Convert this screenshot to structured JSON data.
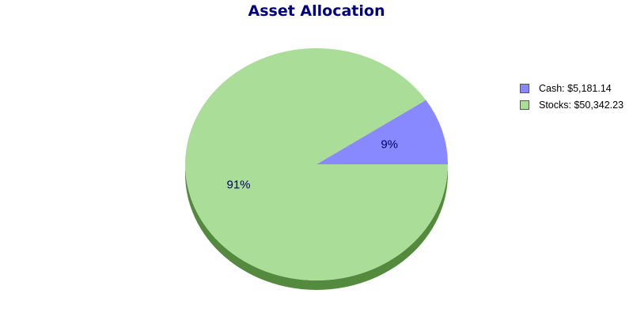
{
  "chart_data": {
    "type": "pie",
    "title": "Asset Allocation",
    "slices": [
      {
        "label": "Cash",
        "value": 5181.14,
        "legend_text": "Cash: $5,181.14",
        "percent_label": "9%",
        "color": "#8888ff",
        "shadow_color": "#4b4bbf"
      },
      {
        "label": "Stocks",
        "value": 50342.23,
        "legend_text": "Stocks: $50,342.23",
        "percent_label": "91%",
        "color": "#aade98",
        "shadow_color": "#548a3e"
      }
    ],
    "legend_position": "right",
    "start_angle_direction": "counter-clockwise from 3 o'clock",
    "style": "3D tilted pie"
  }
}
